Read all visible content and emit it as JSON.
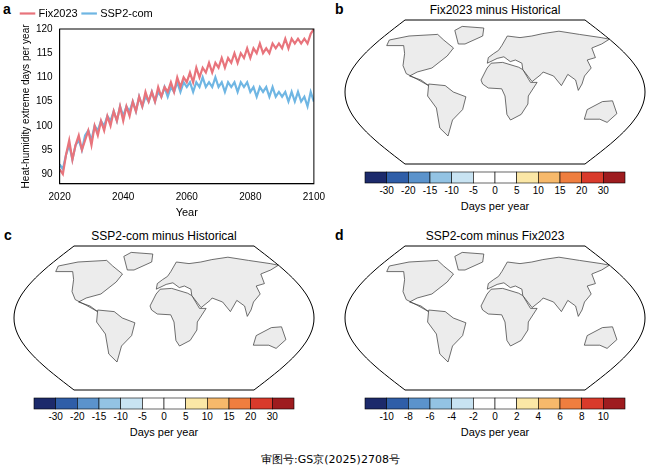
{
  "chart_data": [
    {
      "type": "line",
      "panel": "a",
      "x": [
        2020,
        2021,
        2022,
        2023,
        2024,
        2025,
        2026,
        2027,
        2028,
        2029,
        2030,
        2031,
        2032,
        2033,
        2034,
        2035,
        2036,
        2037,
        2038,
        2039,
        2040,
        2041,
        2042,
        2043,
        2044,
        2045,
        2046,
        2047,
        2048,
        2049,
        2050,
        2051,
        2052,
        2053,
        2054,
        2055,
        2056,
        2057,
        2058,
        2059,
        2060,
        2061,
        2062,
        2063,
        2064,
        2065,
        2066,
        2067,
        2068,
        2069,
        2070,
        2071,
        2072,
        2073,
        2074,
        2075,
        2076,
        2077,
        2078,
        2079,
        2080,
        2081,
        2082,
        2083,
        2084,
        2085,
        2086,
        2087,
        2088,
        2089,
        2090,
        2091,
        2092,
        2093,
        2094,
        2095,
        2096,
        2097,
        2098,
        2099,
        2100
      ],
      "series": [
        {
          "name": "Fix2023",
          "color": "#e8747c",
          "marker": "none",
          "line_style": "solid",
          "values": [
            91,
            90,
            94,
            97,
            93,
            96,
            98,
            95,
            97,
            99,
            96,
            100,
            98,
            101,
            99,
            102,
            100,
            103,
            101,
            104,
            101,
            104,
            102,
            105,
            103,
            106,
            104,
            107,
            105,
            107,
            105,
            108,
            106,
            108,
            107,
            109,
            107,
            110,
            108,
            110,
            109,
            111,
            109,
            112,
            110,
            112,
            111,
            113,
            111,
            113,
            112,
            114,
            112,
            114,
            113,
            115,
            113,
            115,
            114,
            116,
            114,
            116,
            115,
            117,
            115,
            116,
            115,
            117,
            116,
            117,
            116,
            118,
            116,
            118,
            117,
            118,
            117,
            118,
            117,
            119,
            120
          ]
        },
        {
          "name": "SSP2-com",
          "color": "#6fb6e3",
          "marker": "none",
          "line_style": "solid",
          "values": [
            92,
            91,
            94,
            96,
            93,
            96,
            97,
            95,
            98,
            99,
            97,
            100,
            99,
            101,
            100,
            102,
            101,
            103,
            101,
            104,
            102,
            104,
            103,
            105,
            103,
            106,
            104,
            106,
            105,
            107,
            105,
            107,
            106,
            108,
            106,
            108,
            107,
            109,
            107,
            109,
            108,
            109,
            107,
            109,
            108,
            110,
            108,
            109,
            108,
            110,
            108,
            109,
            107,
            109,
            108,
            109,
            107,
            109,
            108,
            109,
            107,
            108,
            106,
            108,
            107,
            108,
            106,
            108,
            106,
            107,
            106,
            107,
            105,
            107,
            105,
            107,
            105,
            106,
            104,
            107,
            105
          ]
        }
      ],
      "x_label": "Year",
      "y_label": "Heat-humidity extreme days per year",
      "xlim": [
        2020,
        2100
      ],
      "xticks": [
        2020,
        2040,
        2060,
        2080,
        2100
      ],
      "ylim": [
        88,
        120
      ],
      "yticks": [
        90,
        95,
        100,
        105,
        110,
        115,
        120
      ],
      "grid": false,
      "legend": "top"
    },
    {
      "type": "map",
      "panel": "b",
      "title": "Fix2023 minus Historical",
      "colorbar": {
        "label": "Days per year",
        "ticks": [
          -30,
          -20,
          -15,
          -10,
          -5,
          0,
          5,
          10,
          15,
          20,
          30
        ],
        "colors": [
          "#1c2a6b",
          "#2f5ea8",
          "#5b93cc",
          "#93c3e3",
          "#c8e3f2",
          "#ffffff",
          "#ffffff",
          "#fbe7a6",
          "#f7b96b",
          "#ef7e3f",
          "#d93a2b",
          "#9e1c1f"
        ]
      }
    },
    {
      "type": "map",
      "panel": "c",
      "title": "SSP2-com minus Historical",
      "colorbar": {
        "label": "Days per year",
        "ticks": [
          -30,
          -20,
          -15,
          -10,
          -5,
          0,
          5,
          10,
          15,
          20,
          30
        ],
        "colors": [
          "#1c2a6b",
          "#2f5ea8",
          "#5b93cc",
          "#93c3e3",
          "#c8e3f2",
          "#ffffff",
          "#ffffff",
          "#fbe7a6",
          "#f7b96b",
          "#ef7e3f",
          "#d93a2b",
          "#9e1c1f"
        ]
      }
    },
    {
      "type": "map",
      "panel": "d",
      "title": "SSP2-com minus Fix2023",
      "colorbar": {
        "label": "Days per year",
        "ticks": [
          -10,
          -8,
          -6,
          -4,
          -2,
          0,
          2,
          4,
          6,
          8,
          10
        ],
        "colors": [
          "#1c2a6b",
          "#2f5ea8",
          "#5b93cc",
          "#93c3e3",
          "#c8e3f2",
          "#ffffff",
          "#ffffff",
          "#fbe7a6",
          "#f7b96b",
          "#ef7e3f",
          "#d93a2b",
          "#9e1c1f"
        ]
      }
    }
  ],
  "footer": "审图号:GS京(2025)2708号"
}
